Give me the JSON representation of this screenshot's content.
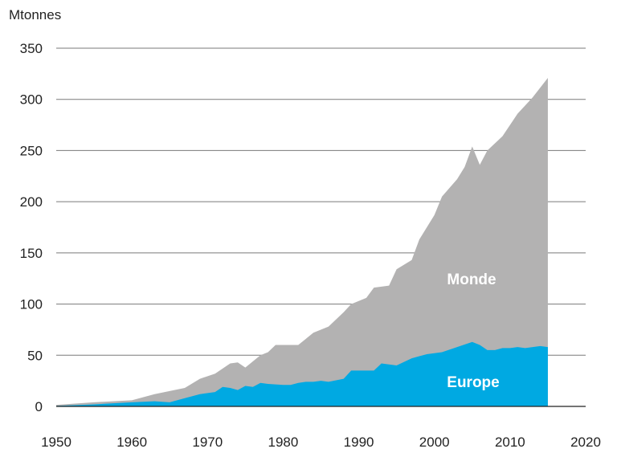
{
  "chart_data": {
    "type": "area",
    "ylabel": "Mtonnes",
    "xlim": [
      1950,
      2020
    ],
    "ylim": [
      0,
      350
    ],
    "x_ticks": [
      "1950",
      "1960",
      "1970",
      "1980",
      "1990",
      "2000",
      "2010",
      "2020"
    ],
    "y_ticks": [
      "0",
      "50",
      "100",
      "150",
      "200",
      "250",
      "300",
      "350"
    ],
    "grid": "horizontal",
    "colors": {
      "Monde": "#b3b2b2",
      "Europe": "#00a9e2",
      "grid": "#7a7a7a",
      "axis": "#222222"
    },
    "series": [
      {
        "name": "Monde",
        "x": [
          1950,
          1955,
          1960,
          1963,
          1965,
          1967,
          1969,
          1971,
          1973,
          1974,
          1975,
          1977,
          1978,
          1979,
          1982,
          1984,
          1986,
          1988,
          1989,
          1991,
          1992,
          1994,
          1995,
          1997,
          1998,
          1999,
          2000,
          2001,
          2003,
          2004,
          2005,
          2006,
          2007,
          2009,
          2011,
          2013,
          2015
        ],
        "values": [
          1.5,
          4,
          6,
          12,
          15,
          18,
          27,
          32,
          42,
          43,
          38,
          50,
          53,
          60,
          60,
          72,
          78,
          92,
          100,
          106,
          116,
          118,
          134,
          143,
          163,
          175,
          187,
          205,
          222,
          234,
          254,
          236,
          250,
          264,
          286,
          302,
          321
        ]
      },
      {
        "name": "Europe",
        "x": [
          1950,
          1955,
          1960,
          1963,
          1965,
          1967,
          1969,
          1971,
          1972,
          1973,
          1974,
          1975,
          1976,
          1977,
          1978,
          1980,
          1981,
          1982,
          1983,
          1984,
          1985,
          1986,
          1988,
          1989,
          1990,
          1991,
          1992,
          1993,
          1995,
          1997,
          1998,
          1999,
          2001,
          2003,
          2005,
          2006,
          2007,
          2008,
          2009,
          2010,
          2011,
          2012,
          2013,
          2014,
          2015
        ],
        "values": [
          0.5,
          2,
          4,
          5,
          4,
          8,
          12,
          14,
          19,
          18,
          16,
          20,
          19,
          23,
          22,
          21,
          21,
          23,
          24,
          24,
          25,
          24,
          27,
          35,
          35,
          35,
          35,
          42,
          40,
          47,
          49,
          51,
          53,
          58,
          63,
          60,
          55,
          55,
          57,
          57,
          58,
          57,
          58,
          59,
          58
        ]
      }
    ],
    "labels": {
      "Monde": "Monde",
      "Europe": "Europe"
    }
  }
}
